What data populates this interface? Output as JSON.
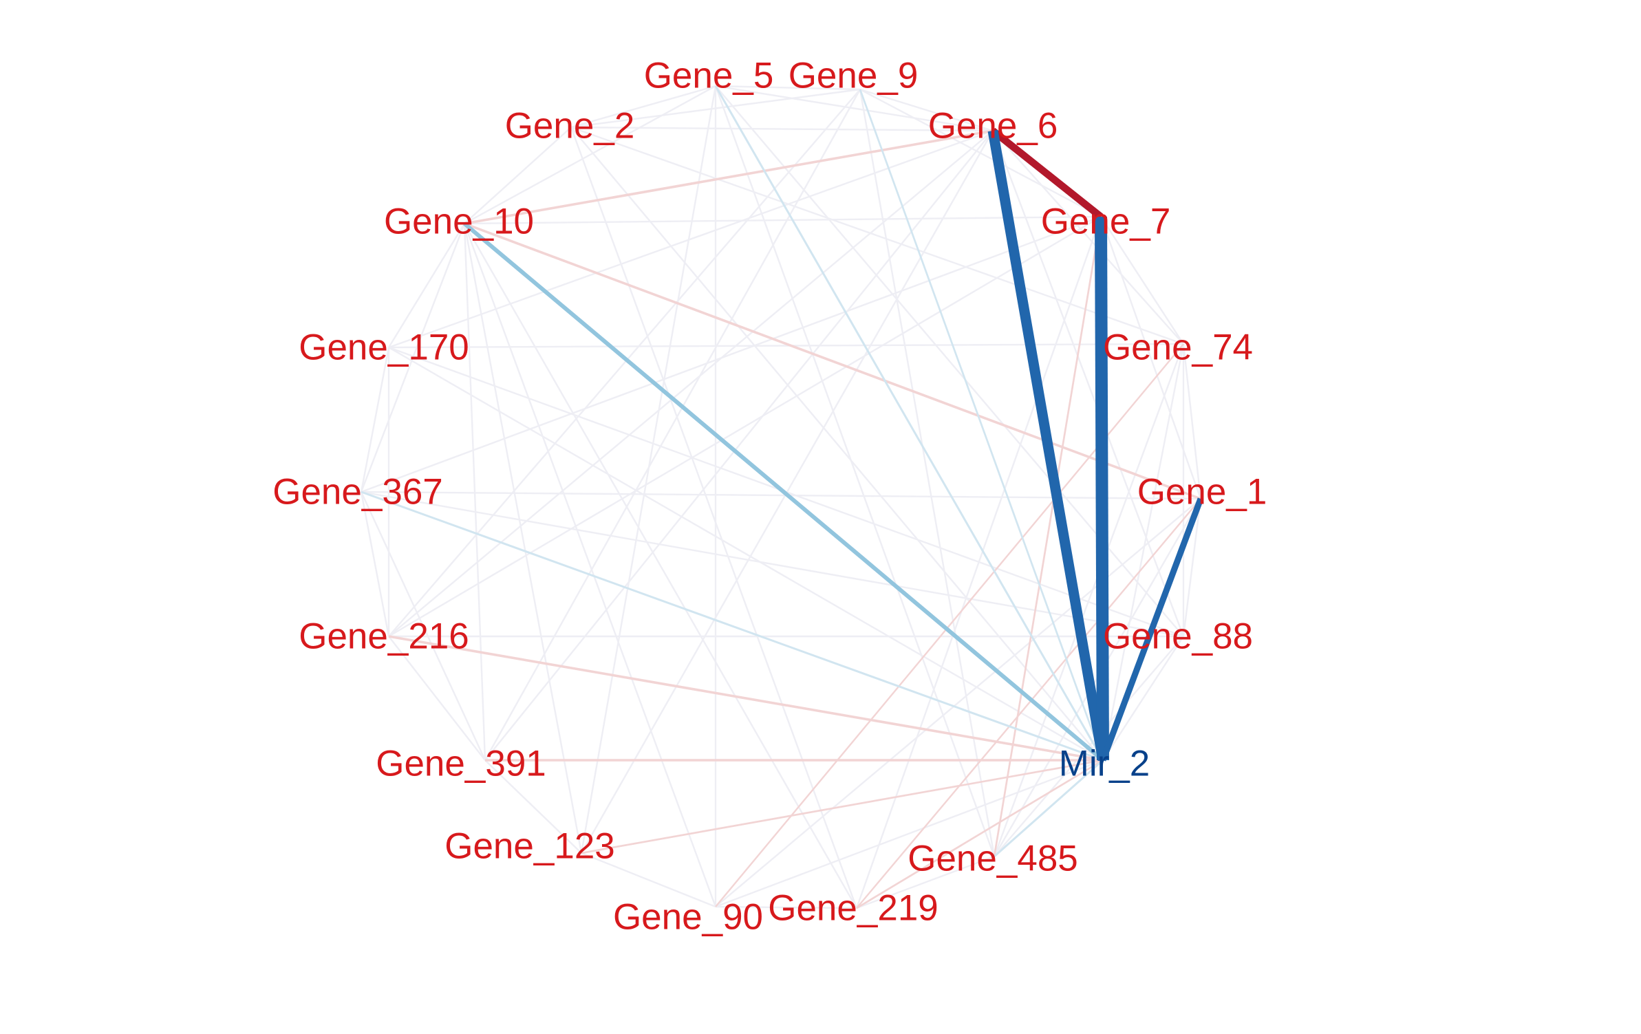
{
  "network": {
    "colors": {
      "gene_label": "#d7191c",
      "mir_label": "#08418a",
      "strong_negative": "#2166ac",
      "medium_negative": "#92c5de",
      "weak_negative": "#d1e5f0",
      "strong_positive": "#b2182b",
      "weak_positive": "#f2d4d4",
      "faint": "#eeeef4"
    },
    "nodes": [
      {
        "id": "gene_5",
        "label": "Gene_5",
        "type": "gene"
      },
      {
        "id": "gene_9",
        "label": "Gene_9",
        "type": "gene"
      },
      {
        "id": "gene_6",
        "label": "Gene_6",
        "type": "gene"
      },
      {
        "id": "gene_7",
        "label": "Gene_7",
        "type": "gene"
      },
      {
        "id": "gene_74",
        "label": "Gene_74",
        "type": "gene"
      },
      {
        "id": "gene_1",
        "label": "Gene_1",
        "type": "gene"
      },
      {
        "id": "gene_88",
        "label": "Gene_88",
        "type": "gene"
      },
      {
        "id": "mir_2",
        "label": "Mir_2",
        "type": "mirna"
      },
      {
        "id": "gene_485",
        "label": "Gene_485",
        "type": "gene"
      },
      {
        "id": "gene_219",
        "label": "Gene_219",
        "type": "gene"
      },
      {
        "id": "gene_90",
        "label": "Gene_90",
        "type": "gene"
      },
      {
        "id": "gene_123",
        "label": "Gene_123",
        "type": "gene"
      },
      {
        "id": "gene_391",
        "label": "Gene_391",
        "type": "gene"
      },
      {
        "id": "gene_216",
        "label": "Gene_216",
        "type": "gene"
      },
      {
        "id": "gene_367",
        "label": "Gene_367",
        "type": "gene"
      },
      {
        "id": "gene_170",
        "label": "Gene_170",
        "type": "gene"
      },
      {
        "id": "gene_10",
        "label": "Gene_10",
        "type": "gene"
      },
      {
        "id": "gene_2",
        "label": "Gene_2",
        "type": "gene"
      }
    ],
    "edges": [
      {
        "source": "gene_6",
        "target": "mir_2",
        "strength": "strong_negative",
        "weight": 5
      },
      {
        "source": "gene_7",
        "target": "mir_2",
        "strength": "strong_negative",
        "weight": 6
      },
      {
        "source": "gene_1",
        "target": "mir_2",
        "strength": "strong_negative",
        "weight": 3
      },
      {
        "source": "gene_6",
        "target": "gene_7",
        "strength": "strong_positive",
        "weight": 3.5
      },
      {
        "source": "gene_10",
        "target": "mir_2",
        "strength": "medium_negative",
        "weight": 2
      },
      {
        "source": "gene_5",
        "target": "mir_2",
        "strength": "weak_negative",
        "weight": 1
      },
      {
        "source": "gene_367",
        "target": "mir_2",
        "strength": "weak_negative",
        "weight": 1
      },
      {
        "source": "gene_485",
        "target": "mir_2",
        "strength": "weak_negative",
        "weight": 1
      },
      {
        "source": "gene_9",
        "target": "mir_2",
        "strength": "weak_negative",
        "weight": 0.9
      },
      {
        "source": "gene_10",
        "target": "gene_6",
        "strength": "weak_positive",
        "weight": 1.2
      },
      {
        "source": "gene_10",
        "target": "gene_1",
        "strength": "weak_positive",
        "weight": 1.2
      },
      {
        "source": "gene_216",
        "target": "mir_2",
        "strength": "weak_positive",
        "weight": 1.2
      },
      {
        "source": "gene_391",
        "target": "mir_2",
        "strength": "weak_positive",
        "weight": 1.2
      },
      {
        "source": "gene_123",
        "target": "mir_2",
        "strength": "weak_positive",
        "weight": 0.9
      },
      {
        "source": "gene_219",
        "target": "mir_2",
        "strength": "weak_positive",
        "weight": 0.9
      },
      {
        "source": "gene_485",
        "target": "gene_7",
        "strength": "weak_positive",
        "weight": 0.9
      },
      {
        "source": "gene_219",
        "target": "gene_1",
        "strength": "weak_positive",
        "weight": 0.8
      },
      {
        "source": "gene_90",
        "target": "gene_74",
        "strength": "weak_positive",
        "weight": 0.8
      },
      {
        "source": "gene_5",
        "target": "gene_9",
        "strength": "faint",
        "weight": 0.8
      },
      {
        "source": "gene_5",
        "target": "gene_6",
        "strength": "faint",
        "weight": 0.8
      },
      {
        "source": "gene_5",
        "target": "gene_2",
        "strength": "faint",
        "weight": 0.8
      },
      {
        "source": "gene_5",
        "target": "gene_10",
        "strength": "faint",
        "weight": 0.8
      },
      {
        "source": "gene_5",
        "target": "gene_90",
        "strength": "faint",
        "weight": 0.8
      },
      {
        "source": "gene_5",
        "target": "gene_88",
        "strength": "faint",
        "weight": 0.8
      },
      {
        "source": "gene_5",
        "target": "gene_485",
        "strength": "faint",
        "weight": 0.8
      },
      {
        "source": "gene_5",
        "target": "gene_123",
        "strength": "faint",
        "weight": 0.8
      },
      {
        "source": "gene_9",
        "target": "gene_6",
        "strength": "faint",
        "weight": 0.8
      },
      {
        "source": "gene_9",
        "target": "gene_7",
        "strength": "faint",
        "weight": 0.8
      },
      {
        "source": "gene_9",
        "target": "gene_216",
        "strength": "faint",
        "weight": 0.8
      },
      {
        "source": "gene_9",
        "target": "gene_391",
        "strength": "faint",
        "weight": 0.8
      },
      {
        "source": "gene_9",
        "target": "gene_485",
        "strength": "faint",
        "weight": 0.8
      },
      {
        "source": "gene_6",
        "target": "gene_74",
        "strength": "faint",
        "weight": 0.8
      },
      {
        "source": "gene_6",
        "target": "gene_216",
        "strength": "faint",
        "weight": 0.8
      },
      {
        "source": "gene_6",
        "target": "gene_391",
        "strength": "faint",
        "weight": 0.8
      },
      {
        "source": "gene_6",
        "target": "gene_123",
        "strength": "faint",
        "weight": 0.8
      },
      {
        "source": "gene_6",
        "target": "gene_88",
        "strength": "faint",
        "weight": 0.8
      },
      {
        "source": "gene_7",
        "target": "gene_74",
        "strength": "faint",
        "weight": 0.8
      },
      {
        "source": "gene_7",
        "target": "gene_1",
        "strength": "faint",
        "weight": 0.8
      },
      {
        "source": "gene_7",
        "target": "gene_10",
        "strength": "faint",
        "weight": 0.8
      },
      {
        "source": "gene_7",
        "target": "gene_367",
        "strength": "faint",
        "weight": 0.8
      },
      {
        "source": "gene_7",
        "target": "gene_219",
        "strength": "faint",
        "weight": 0.8
      },
      {
        "source": "gene_7",
        "target": "gene_216",
        "strength": "faint",
        "weight": 0.8
      },
      {
        "source": "gene_74",
        "target": "gene_1",
        "strength": "faint",
        "weight": 0.8
      },
      {
        "source": "gene_74",
        "target": "gene_88",
        "strength": "faint",
        "weight": 0.8
      },
      {
        "source": "gene_74",
        "target": "gene_485",
        "strength": "faint",
        "weight": 0.8
      },
      {
        "source": "gene_74",
        "target": "gene_170",
        "strength": "faint",
        "weight": 0.8
      },
      {
        "source": "gene_74",
        "target": "gene_2",
        "strength": "faint",
        "weight": 0.8
      },
      {
        "source": "gene_1",
        "target": "gene_88",
        "strength": "faint",
        "weight": 0.8
      },
      {
        "source": "gene_1",
        "target": "gene_367",
        "strength": "faint",
        "weight": 0.8
      },
      {
        "source": "gene_1",
        "target": "gene_90",
        "strength": "faint",
        "weight": 0.8
      },
      {
        "source": "gene_1",
        "target": "gene_485",
        "strength": "faint",
        "weight": 0.8
      },
      {
        "source": "gene_88",
        "target": "gene_485",
        "strength": "faint",
        "weight": 0.8
      },
      {
        "source": "gene_88",
        "target": "gene_216",
        "strength": "faint",
        "weight": 0.8
      },
      {
        "source": "gene_88",
        "target": "gene_170",
        "strength": "faint",
        "weight": 0.8
      },
      {
        "source": "gene_88",
        "target": "mir_2",
        "strength": "faint",
        "weight": 0.8
      },
      {
        "source": "gene_74",
        "target": "mir_2",
        "strength": "faint",
        "weight": 0.8
      },
      {
        "source": "gene_90",
        "target": "mir_2",
        "strength": "faint",
        "weight": 0.8
      },
      {
        "source": "gene_170",
        "target": "mir_2",
        "strength": "faint",
        "weight": 0.8
      },
      {
        "source": "gene_2",
        "target": "mir_2",
        "strength": "faint",
        "weight": 0.8
      },
      {
        "source": "gene_485",
        "target": "gene_219",
        "strength": "faint",
        "weight": 0.8
      },
      {
        "source": "gene_219",
        "target": "gene_90",
        "strength": "faint",
        "weight": 0.8
      },
      {
        "source": "gene_219",
        "target": "gene_10",
        "strength": "faint",
        "weight": 0.8
      },
      {
        "source": "gene_90",
        "target": "gene_123",
        "strength": "faint",
        "weight": 0.8
      },
      {
        "source": "gene_90",
        "target": "gene_10",
        "strength": "faint",
        "weight": 0.8
      },
      {
        "source": "gene_123",
        "target": "gene_391",
        "strength": "faint",
        "weight": 0.8
      },
      {
        "source": "gene_123",
        "target": "gene_10",
        "strength": "faint",
        "weight": 0.8
      },
      {
        "source": "gene_391",
        "target": "gene_216",
        "strength": "faint",
        "weight": 0.8
      },
      {
        "source": "gene_391",
        "target": "gene_367",
        "strength": "faint",
        "weight": 0.8
      },
      {
        "source": "gene_216",
        "target": "gene_367",
        "strength": "faint",
        "weight": 0.8
      },
      {
        "source": "gene_216",
        "target": "gene_170",
        "strength": "faint",
        "weight": 0.8
      },
      {
        "source": "gene_367",
        "target": "gene_170",
        "strength": "faint",
        "weight": 0.8
      },
      {
        "source": "gene_367",
        "target": "gene_10",
        "strength": "faint",
        "weight": 0.8
      },
      {
        "source": "gene_367",
        "target": "gene_88",
        "strength": "faint",
        "weight": 0.8
      },
      {
        "source": "gene_170",
        "target": "gene_10",
        "strength": "faint",
        "weight": 0.8
      },
      {
        "source": "gene_170",
        "target": "gene_6",
        "strength": "faint",
        "weight": 0.8
      },
      {
        "source": "gene_10",
        "target": "gene_2",
        "strength": "faint",
        "weight": 0.8
      },
      {
        "source": "gene_10",
        "target": "gene_391",
        "strength": "faint",
        "weight": 0.8
      },
      {
        "source": "gene_2",
        "target": "gene_6",
        "strength": "faint",
        "weight": 0.8
      },
      {
        "source": "gene_2",
        "target": "gene_9",
        "strength": "faint",
        "weight": 0.8
      },
      {
        "source": "gene_2",
        "target": "gene_219",
        "strength": "faint",
        "weight": 0.8
      }
    ]
  }
}
